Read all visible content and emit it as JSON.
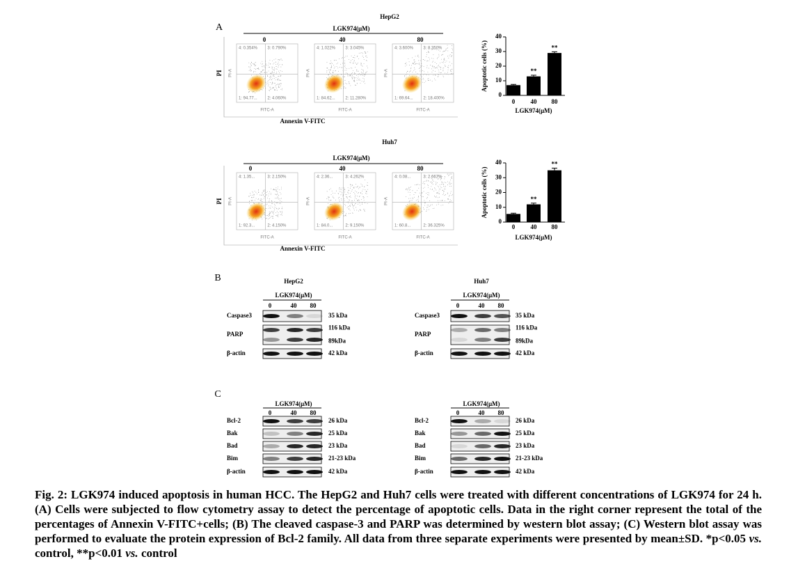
{
  "panel_a": {
    "label": "A",
    "groups": [
      {
        "cell_line": "HepG2",
        "treatment": "LGK974(μM)",
        "doses": [
          "0",
          "40",
          "80"
        ],
        "plot_y_label": "PI-A",
        "plot_x_label": "FITC-A",
        "y_label": "PI",
        "x_label": "Annexin V-FITC",
        "plots": [
          {
            "q4": "4: 0.354%",
            "q3": "3: 0.790%",
            "q1": "1: 94.77...",
            "q2": "2: 4.060%"
          },
          {
            "q4": "4: 1.022%",
            "q3": "3: 3.045%",
            "q1": "1: 84.62...",
            "q2": "2: 11.280%"
          },
          {
            "q4": "4: 3.600%",
            "q3": "3: 8.350%",
            "q1": "1: 69.64...",
            "q2": "2: 18.400%"
          }
        ]
      },
      {
        "cell_line": "Huh7",
        "treatment": "LGK974(μM)",
        "doses": [
          "0",
          "40",
          "80"
        ],
        "plot_y_label": "PI-A",
        "plot_x_label": "FITC-A",
        "y_label": "PI",
        "x_label": "Annexin V-FITC",
        "plots": [
          {
            "q4": "4: 1.35...",
            "q3": "3: 2.150%",
            "q1": "1: 92.3...",
            "q2": "2: 4.150%"
          },
          {
            "q4": "4: 2.36...",
            "q3": "3: 4.262%",
            "q1": "1: 84.0...",
            "q2": "2: 9.150%"
          },
          {
            "q4": "4: 0.08...",
            "q3": "3: 2.667%",
            "q1": "1: 60.8...",
            "q2": "2: 36.325%"
          }
        ]
      }
    ]
  },
  "chart_data": [
    {
      "type": "bar",
      "ylabel": "Apoptotic cells (%)",
      "xlabel": "LGK974(μM)",
      "categories": [
        "0",
        "40",
        "80"
      ],
      "values": [
        7,
        13,
        29
      ],
      "errors": [
        0.5,
        0.8,
        0.8
      ],
      "annotations": [
        null,
        "**",
        "**"
      ],
      "ylim": [
        0,
        40
      ],
      "yticks": [
        0,
        10,
        20,
        30,
        40
      ],
      "color": "#000000"
    },
    {
      "type": "bar",
      "ylabel": "Apoptotic cells (%)",
      "xlabel": "LGK974(μM)",
      "categories": [
        "0",
        "40",
        "80"
      ],
      "values": [
        5.5,
        12,
        35
      ],
      "errors": [
        0.5,
        0.8,
        1.5
      ],
      "annotations": [
        null,
        "**",
        "**"
      ],
      "ylim": [
        0,
        40
      ],
      "yticks": [
        0,
        10,
        20,
        30,
        40
      ],
      "color": "#000000"
    }
  ],
  "panel_b": {
    "label": "B",
    "blots": [
      {
        "cell_line": "HepG2",
        "treatment": "LGK974(μM)",
        "doses": [
          "0",
          "40",
          "80"
        ],
        "rows": [
          {
            "protein": "Caspase3",
            "sizes": [
              "35 kDa"
            ]
          },
          {
            "protein": "PARP",
            "sizes": [
              "116 kDa",
              "89kDa"
            ]
          },
          {
            "protein": "β-actin",
            "sizes": [
              "42 kDa"
            ]
          }
        ]
      },
      {
        "cell_line": "Huh7",
        "treatment": "LGK974(μM)",
        "doses": [
          "0",
          "40",
          "80"
        ],
        "rows": [
          {
            "protein": "Caspase3",
            "sizes": [
              "35 kDa"
            ]
          },
          {
            "protein": "PARP",
            "sizes": [
              "116 kDa",
              "89kDa"
            ]
          },
          {
            "protein": "β-actin",
            "sizes": [
              "42 kDa"
            ]
          }
        ]
      }
    ]
  },
  "panel_c": {
    "label": "C",
    "blots": [
      {
        "treatment": "LGK974(μM)",
        "doses": [
          "0",
          "40",
          "80"
        ],
        "rows": [
          {
            "protein": "Bcl-2",
            "sizes": [
              "26 kDa"
            ]
          },
          {
            "protein": "Bak",
            "sizes": [
              "25 kDa"
            ]
          },
          {
            "protein": "Bad",
            "sizes": [
              "23 kDa"
            ]
          },
          {
            "protein": "Bim",
            "sizes": [
              "21-23 kDa"
            ]
          },
          {
            "protein": "β-actin",
            "sizes": [
              "42 kDa"
            ]
          }
        ]
      },
      {
        "treatment": "LGK974(μM)",
        "doses": [
          "0",
          "40",
          "80"
        ],
        "rows": [
          {
            "protein": "Bcl-2",
            "sizes": [
              "26 kDa"
            ]
          },
          {
            "protein": "Bak",
            "sizes": [
              "25 kDa"
            ]
          },
          {
            "protein": "Bad",
            "sizes": [
              "23 kDa"
            ]
          },
          {
            "protein": "Bim",
            "sizes": [
              "21-23 kDa"
            ]
          },
          {
            "protein": "β-actin",
            "sizes": [
              "42 kDa"
            ]
          }
        ]
      }
    ]
  },
  "caption": {
    "parts": [
      "Fig. 2: LGK974 induced apoptosis in human HCC. The HepG2 and Huh7 cells were treated with different concentrations of LGK974 for 24 h. (A) Cells were subjected to flow cytometry assay to detect the percentage of apoptotic cells. Data in the right corner represent the total of the percentages of Annexin V-FITC+cells; (B) The cleaved caspase-3 and PARP was determined by western blot assay; (C) Western blot assay was performed to evaluate the protein expression of Bcl-2 family. All data from three separate experiments were presented by mean±SD. *p<0.05 ",
      "vs.",
      " control, **p<0.01 ",
      "vs.",
      " control"
    ]
  }
}
